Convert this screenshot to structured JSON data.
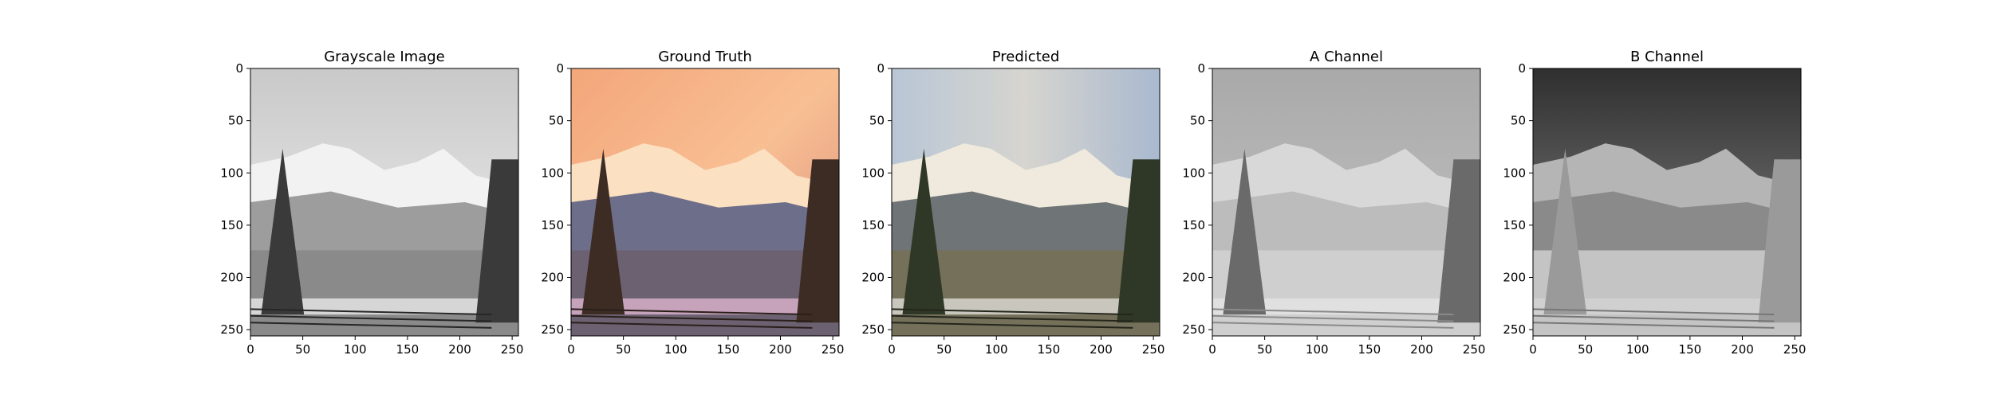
{
  "chart_data": {
    "type": "image",
    "panels": [
      {
        "title": "Grayscale Image",
        "colormap": "grayscale",
        "xticks": [
          "0",
          "50",
          "100",
          "150",
          "200",
          "250"
        ],
        "yticks": [
          "0",
          "50",
          "100",
          "150",
          "200",
          "250"
        ],
        "xlim": [
          0,
          256
        ],
        "ylim": [
          256,
          0
        ]
      },
      {
        "title": "Ground Truth",
        "colormap": "color",
        "xticks": [
          "0",
          "50",
          "100",
          "150",
          "200",
          "250"
        ],
        "yticks": [
          "0",
          "50",
          "100",
          "150",
          "200",
          "250"
        ],
        "xlim": [
          0,
          256
        ],
        "ylim": [
          256,
          0
        ]
      },
      {
        "title": "Predicted",
        "colormap": "color",
        "xticks": [
          "0",
          "50",
          "100",
          "150",
          "200",
          "250"
        ],
        "yticks": [
          "0",
          "50",
          "100",
          "150",
          "200",
          "250"
        ],
        "xlim": [
          0,
          256
        ],
        "ylim": [
          256,
          0
        ]
      },
      {
        "title": "A Channel",
        "colormap": "grayscale",
        "xticks": [
          "0",
          "50",
          "100",
          "150",
          "200",
          "250"
        ],
        "yticks": [
          "0",
          "50",
          "100",
          "150",
          "200",
          "250"
        ],
        "xlim": [
          0,
          256
        ],
        "ylim": [
          256,
          0
        ]
      },
      {
        "title": "B Channel",
        "colormap": "grayscale",
        "xticks": [
          "0",
          "50",
          "100",
          "150",
          "200",
          "250"
        ],
        "yticks": [
          "0",
          "50",
          "100",
          "150",
          "200",
          "250"
        ],
        "xlim": [
          0,
          256
        ],
        "ylim": [
          256,
          0
        ]
      }
    ]
  }
}
